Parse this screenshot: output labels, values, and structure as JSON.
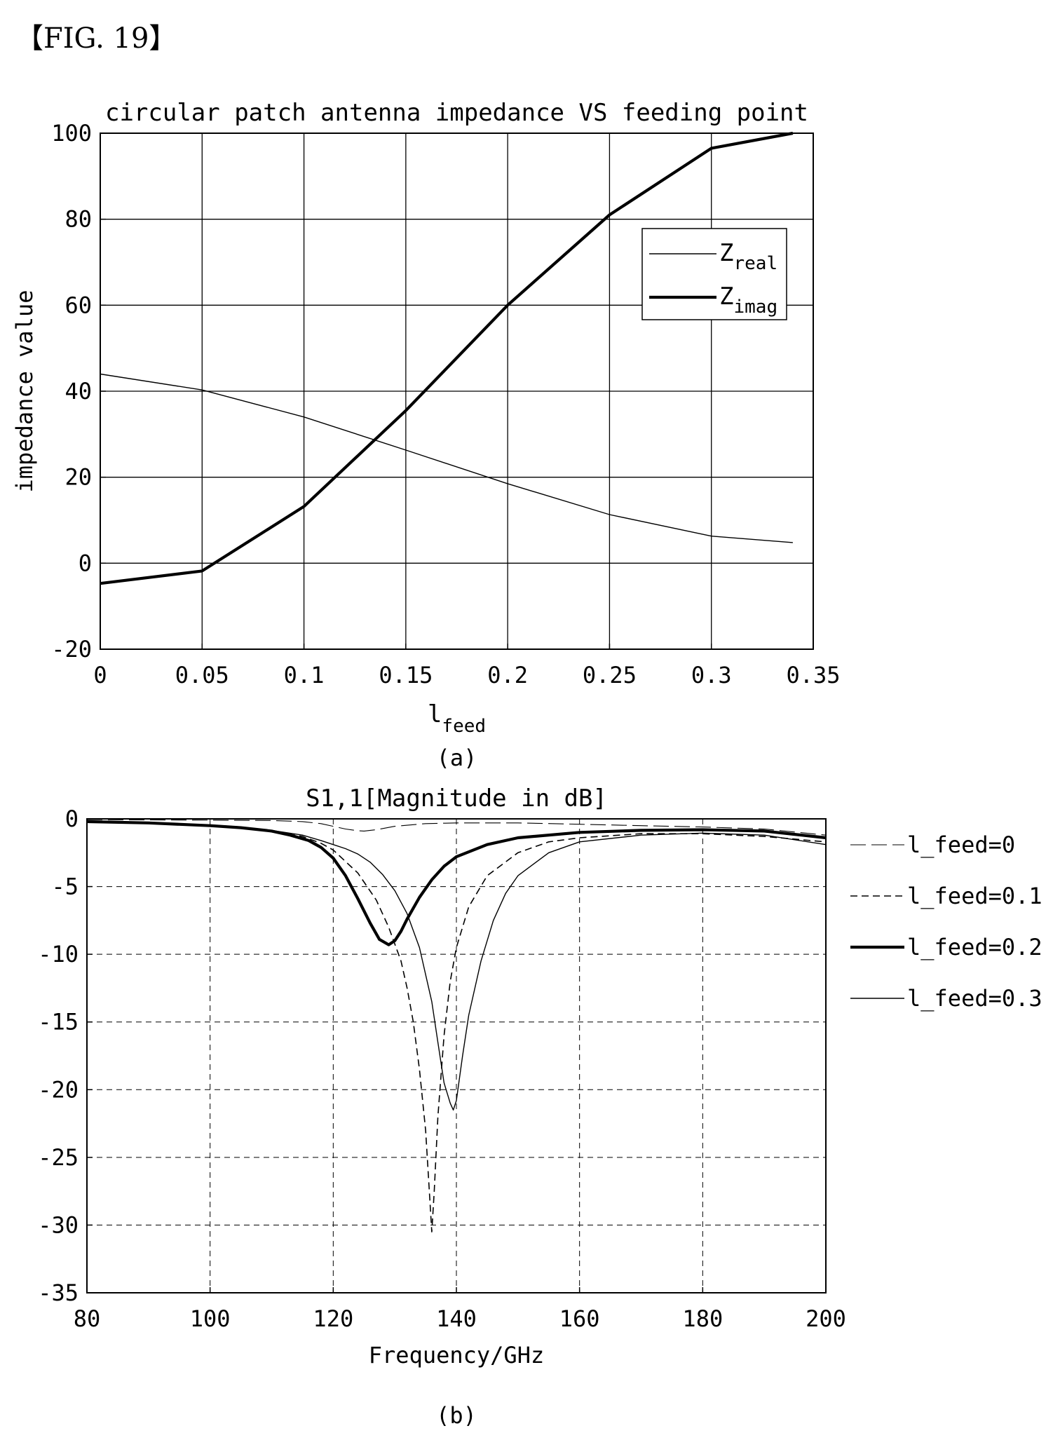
{
  "figure_label": "【FIG. 19】",
  "chart_data": [
    {
      "type": "line",
      "title": "circular patch antenna impedance VS feeding point",
      "xlabel": "l",
      "xlabel_sub": "feed",
      "ylabel": "impedance value",
      "xlim": [
        0,
        0.35
      ],
      "ylim": [
        -20,
        100
      ],
      "xticks": [
        0,
        0.05,
        0.1,
        0.15,
        0.2,
        0.25,
        0.3,
        0.35
      ],
      "xtick_labels": [
        "0",
        "0.05",
        "0.1",
        "0.15",
        "0.2",
        "0.25",
        "0.3",
        "0.35"
      ],
      "yticks": [
        -20,
        0,
        20,
        40,
        60,
        80,
        100
      ],
      "ytick_labels": [
        "-20",
        "0",
        "20",
        "40",
        "60",
        "80",
        "100"
      ],
      "grid": true,
      "legend_position": "top-right",
      "caption": "(a)",
      "series": [
        {
          "name": "Z",
          "name_sub": "real",
          "style": "thin",
          "x": [
            0,
            0.05,
            0.1,
            0.15,
            0.2,
            0.25,
            0.3,
            0.34
          ],
          "y": [
            44,
            40.3,
            34,
            26.3,
            18.5,
            11.3,
            6.3,
            4.8
          ]
        },
        {
          "name": "Z",
          "name_sub": "imag",
          "style": "thick",
          "x": [
            0,
            0.05,
            0.1,
            0.15,
            0.2,
            0.25,
            0.3,
            0.34
          ],
          "y": [
            -4.7,
            -1.8,
            13.2,
            35.5,
            60,
            81,
            96.5,
            100
          ]
        }
      ]
    },
    {
      "type": "line",
      "title": "S1,1[Magnitude in dB]",
      "xlabel": "Frequency/GHz",
      "ylabel": "",
      "xlim": [
        80,
        200
      ],
      "ylim": [
        -35,
        0
      ],
      "xticks": [
        80,
        100,
        120,
        140,
        160,
        180,
        200
      ],
      "xtick_labels": [
        "80",
        "100",
        "120",
        "140",
        "160",
        "180",
        "200"
      ],
      "yticks": [
        0,
        -5,
        -10,
        -15,
        -20,
        -25,
        -30,
        -35
      ],
      "ytick_labels": [
        "0",
        "-5",
        "-10",
        "-15",
        "-20",
        "-25",
        "-30",
        "-35"
      ],
      "grid": true,
      "grid_style": "dashed",
      "legend_position": "right-outside",
      "caption": "(b)",
      "series": [
        {
          "name": "l_feed=0",
          "style": "thin-dashgap",
          "x": [
            80,
            100,
            110,
            115,
            118,
            120,
            122,
            124,
            125,
            127,
            130,
            135,
            140,
            150,
            160,
            170,
            180,
            190,
            200
          ],
          "y": [
            -0.05,
            -0.1,
            -0.12,
            -0.2,
            -0.35,
            -0.55,
            -0.75,
            -0.88,
            -0.9,
            -0.8,
            -0.55,
            -0.35,
            -0.3,
            -0.3,
            -0.4,
            -0.5,
            -0.6,
            -0.75,
            -1.2
          ]
        },
        {
          "name": "l_feed=0.1",
          "style": "dashed",
          "x": [
            80,
            90,
            100,
            105,
            110,
            115,
            118,
            120,
            124,
            127,
            129,
            131,
            132,
            133,
            134,
            135,
            135.6,
            136,
            136.4,
            137,
            138,
            139,
            140,
            142,
            145,
            150,
            155,
            160,
            170,
            180,
            190,
            200
          ],
          "y": [
            -0.2,
            -0.3,
            -0.45,
            -0.6,
            -0.9,
            -1.3,
            -1.8,
            -2.3,
            -4,
            -6,
            -8,
            -10.5,
            -12.5,
            -15,
            -18.5,
            -23,
            -27.5,
            -30.5,
            -27.5,
            -22,
            -16,
            -12,
            -9.5,
            -6.5,
            -4.2,
            -2.5,
            -1.7,
            -1.4,
            -1.1,
            -1.1,
            -1.3,
            -1.7
          ]
        },
        {
          "name": "l_feed=0.2",
          "style": "thick",
          "x": [
            80,
            90,
            100,
            105,
            110,
            113,
            116,
            118,
            120,
            122,
            124,
            126,
            127.5,
            129,
            130,
            131,
            132,
            134,
            136,
            138,
            140,
            145,
            150,
            160,
            170,
            180,
            190,
            200
          ],
          "y": [
            -0.2,
            -0.3,
            -0.5,
            -0.65,
            -0.9,
            -1.2,
            -1.6,
            -2.1,
            -2.9,
            -4.2,
            -5.9,
            -7.7,
            -8.9,
            -9.3,
            -9.0,
            -8.3,
            -7.4,
            -5.8,
            -4.5,
            -3.5,
            -2.8,
            -1.9,
            -1.4,
            -1.0,
            -0.85,
            -0.8,
            -0.9,
            -1.4
          ]
        },
        {
          "name": "l_feed=0.3",
          "style": "thin",
          "x": [
            80,
            90,
            100,
            105,
            110,
            115,
            118,
            120,
            122,
            124,
            126,
            128,
            130,
            132,
            134,
            136,
            137,
            138,
            139,
            139.5,
            140,
            141,
            142,
            144,
            146,
            148,
            150,
            155,
            160,
            170,
            180,
            190,
            200
          ],
          "y": [
            -0.2,
            -0.3,
            -0.45,
            -0.6,
            -0.85,
            -1.2,
            -1.6,
            -1.9,
            -2.2,
            -2.6,
            -3.2,
            -4.1,
            -5.3,
            -7.0,
            -9.5,
            -13.5,
            -16.5,
            -19.5,
            -21,
            -21.5,
            -20.8,
            -17.5,
            -14.5,
            -10.5,
            -7.5,
            -5.5,
            -4.2,
            -2.5,
            -1.7,
            -1.2,
            -1.05,
            -1.2,
            -1.9
          ]
        }
      ]
    }
  ]
}
